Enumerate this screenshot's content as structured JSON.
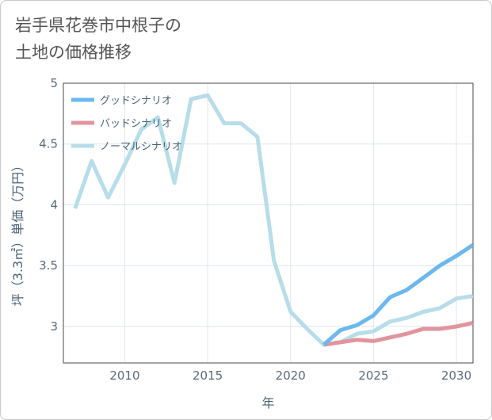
{
  "title": {
    "line1": "岩手県花巻市中根子の",
    "line2": "土地の価格推移"
  },
  "chart_data": {
    "type": "line",
    "xlabel": "年",
    "ylabel": "坪（3.3㎡）単価（万円）",
    "xlim": [
      2006.3,
      2031
    ],
    "ylim": [
      2.7,
      5
    ],
    "xticks": [
      2010,
      2015,
      2020,
      2025,
      2030
    ],
    "yticks": [
      3,
      3.5,
      4,
      4.5,
      5
    ],
    "yticklabels": [
      "3",
      "3.5",
      "4",
      "4.5",
      "5"
    ],
    "grid": true,
    "legend_position": "top-left",
    "series": [
      {
        "name": "グッドシナリオ",
        "color": "#6cb8ee",
        "x": [
          2022,
          2023,
          2024,
          2025,
          2026,
          2027,
          2028,
          2029,
          2030,
          2031
        ],
        "y": [
          2.85,
          2.97,
          3.01,
          3.09,
          3.24,
          3.3,
          3.4,
          3.5,
          3.58,
          3.67
        ]
      },
      {
        "name": "バッドシナリオ",
        "color": "#e2949c",
        "x": [
          2022,
          2023,
          2024,
          2025,
          2026,
          2027,
          2028,
          2029,
          2030,
          2031
        ],
        "y": [
          2.85,
          2.87,
          2.89,
          2.88,
          2.91,
          2.94,
          2.98,
          2.98,
          3.0,
          3.03
        ]
      },
      {
        "name": "ノーマルシナリオ",
        "color": "#b6dde9",
        "x": [
          2007,
          2008,
          2009,
          2010,
          2011,
          2012,
          2013,
          2014,
          2015,
          2016,
          2017,
          2018,
          2019,
          2020,
          2021,
          2022,
          2023,
          2024,
          2025,
          2026,
          2027,
          2028,
          2029,
          2030,
          2031
        ],
        "y": [
          3.97,
          4.36,
          4.06,
          4.33,
          4.62,
          4.72,
          4.18,
          4.87,
          4.9,
          4.67,
          4.67,
          4.56,
          3.54,
          3.12,
          2.98,
          2.85,
          2.87,
          2.94,
          2.96,
          3.04,
          3.07,
          3.12,
          3.15,
          3.23,
          3.25
        ]
      }
    ]
  }
}
